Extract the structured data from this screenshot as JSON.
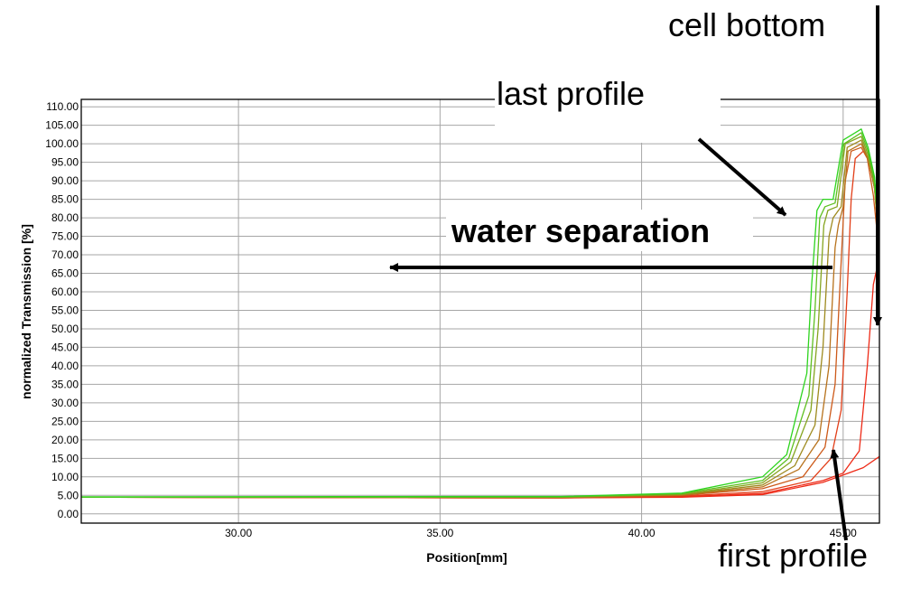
{
  "chart_data": {
    "type": "line",
    "title": "",
    "xlabel": "Position[mm]",
    "ylabel": "normalized Transmission [%]",
    "xlim": [
      26.1,
      45.9
    ],
    "ylim": [
      -2.5,
      112
    ],
    "grid": true,
    "x_ticks": [
      30,
      35,
      40,
      45
    ],
    "x_tick_labels": [
      "30.00",
      "35.00",
      "40.00",
      "45.00"
    ],
    "y_ticks": [
      0,
      5,
      10,
      15,
      20,
      25,
      30,
      35,
      40,
      45,
      50,
      55,
      60,
      65,
      70,
      75,
      80,
      85,
      90,
      95,
      100,
      105,
      110
    ],
    "y_tick_labels": [
      "0.00",
      "5.00",
      "10.00",
      "15.00",
      "20.00",
      "25.00",
      "30.00",
      "35.00",
      "40.00",
      "45.00",
      "50.00",
      "55.00",
      "60.00",
      "65.00",
      "70.00",
      "75.00",
      "80.00",
      "85.00",
      "90.00",
      "95.00",
      "100.00",
      "105.00",
      "110.00"
    ],
    "series": [
      {
        "color": "#ee2a17",
        "points": [
          [
            26.1,
            4.5
          ],
          [
            38,
            4.3
          ],
          [
            41,
            4.5
          ],
          [
            43,
            5.2
          ],
          [
            44.5,
            8.5
          ],
          [
            45.5,
            12.5
          ],
          [
            45.9,
            15.5
          ]
        ]
      },
      {
        "color": "#ee2a17",
        "points": [
          [
            26.1,
            4.5
          ],
          [
            38,
            4.3
          ],
          [
            41,
            4.6
          ],
          [
            43,
            5.5
          ],
          [
            44.5,
            9
          ],
          [
            45,
            11
          ],
          [
            45.4,
            17
          ],
          [
            45.6,
            40
          ],
          [
            45.75,
            62
          ],
          [
            45.85,
            67
          ],
          [
            45.9,
            67
          ]
        ]
      },
      {
        "color": "#e23e18",
        "points": [
          [
            26.1,
            4.5
          ],
          [
            38,
            4.3
          ],
          [
            41,
            4.8
          ],
          [
            43,
            6
          ],
          [
            44.2,
            9
          ],
          [
            44.7,
            15
          ],
          [
            44.95,
            28
          ],
          [
            45.1,
            60
          ],
          [
            45.2,
            85
          ],
          [
            45.3,
            96
          ],
          [
            45.5,
            98
          ],
          [
            45.62,
            96
          ],
          [
            45.78,
            88
          ],
          [
            45.9,
            73
          ]
        ]
      },
      {
        "color": "#cd5a1a",
        "points": [
          [
            26.1,
            4.5
          ],
          [
            38,
            4.4
          ],
          [
            41,
            5
          ],
          [
            43,
            6.8
          ],
          [
            44,
            10
          ],
          [
            44.55,
            18
          ],
          [
            44.8,
            35
          ],
          [
            44.95,
            68
          ],
          [
            45.05,
            90
          ],
          [
            45.2,
            98
          ],
          [
            45.45,
            99
          ],
          [
            45.6,
            96
          ],
          [
            45.75,
            86
          ],
          [
            45.9,
            70
          ]
        ]
      },
      {
        "color": "#b7721c",
        "points": [
          [
            26.1,
            4.5
          ],
          [
            38,
            4.4
          ],
          [
            41,
            5.1
          ],
          [
            43,
            7.3
          ],
          [
            43.9,
            12
          ],
          [
            44.4,
            20
          ],
          [
            44.65,
            40
          ],
          [
            44.8,
            72
          ],
          [
            44.88,
            78
          ],
          [
            45,
            83
          ],
          [
            45.12,
            98
          ],
          [
            45.45,
            100
          ],
          [
            45.62,
            96
          ],
          [
            45.78,
            88
          ],
          [
            45.9,
            71
          ]
        ]
      },
      {
        "color": "#9e8a1e",
        "points": [
          [
            26.1,
            4.5
          ],
          [
            38,
            4.5
          ],
          [
            41,
            5.2
          ],
          [
            43,
            7.8
          ],
          [
            43.8,
            13
          ],
          [
            44.3,
            24
          ],
          [
            44.5,
            45
          ],
          [
            44.65,
            75
          ],
          [
            44.75,
            80
          ],
          [
            44.95,
            83
          ],
          [
            45.1,
            99
          ],
          [
            45.45,
            101
          ],
          [
            45.62,
            96
          ],
          [
            45.78,
            88
          ],
          [
            45.9,
            72
          ]
        ]
      },
      {
        "color": "#85a41f",
        "points": [
          [
            26.1,
            4.5
          ],
          [
            38,
            4.5
          ],
          [
            41,
            5.3
          ],
          [
            43,
            8.4
          ],
          [
            43.7,
            14
          ],
          [
            44.2,
            28
          ],
          [
            44.38,
            50
          ],
          [
            44.52,
            78
          ],
          [
            44.62,
            82
          ],
          [
            44.85,
            83
          ],
          [
            45.05,
            100
          ],
          [
            45.45,
            102
          ],
          [
            45.62,
            97
          ],
          [
            45.78,
            89
          ],
          [
            45.9,
            72
          ]
        ]
      },
      {
        "color": "#5ebf1f",
        "points": [
          [
            26.1,
            4.5
          ],
          [
            38,
            4.6
          ],
          [
            41,
            5.5
          ],
          [
            43,
            9
          ],
          [
            43.65,
            15
          ],
          [
            44.15,
            32
          ],
          [
            44.3,
            55
          ],
          [
            44.42,
            80
          ],
          [
            44.55,
            83
          ],
          [
            44.8,
            84
          ],
          [
            45.02,
            100
          ],
          [
            45.45,
            103
          ],
          [
            45.62,
            98
          ],
          [
            45.78,
            90
          ],
          [
            45.9,
            73
          ]
        ]
      },
      {
        "color": "#2ed41e",
        "points": [
          [
            26.1,
            4.6
          ],
          [
            38,
            4.7
          ],
          [
            41,
            5.6
          ],
          [
            43,
            10
          ],
          [
            43.6,
            16
          ],
          [
            44.1,
            38
          ],
          [
            44.22,
            62
          ],
          [
            44.35,
            82
          ],
          [
            44.5,
            85
          ],
          [
            44.75,
            85
          ],
          [
            45,
            101
          ],
          [
            45.45,
            104
          ],
          [
            45.62,
            99
          ],
          [
            45.78,
            91
          ],
          [
            45.9,
            74
          ]
        ]
      }
    ],
    "annotations": [
      "cell bottom",
      "last profile",
      "water separation",
      "first profile"
    ]
  }
}
